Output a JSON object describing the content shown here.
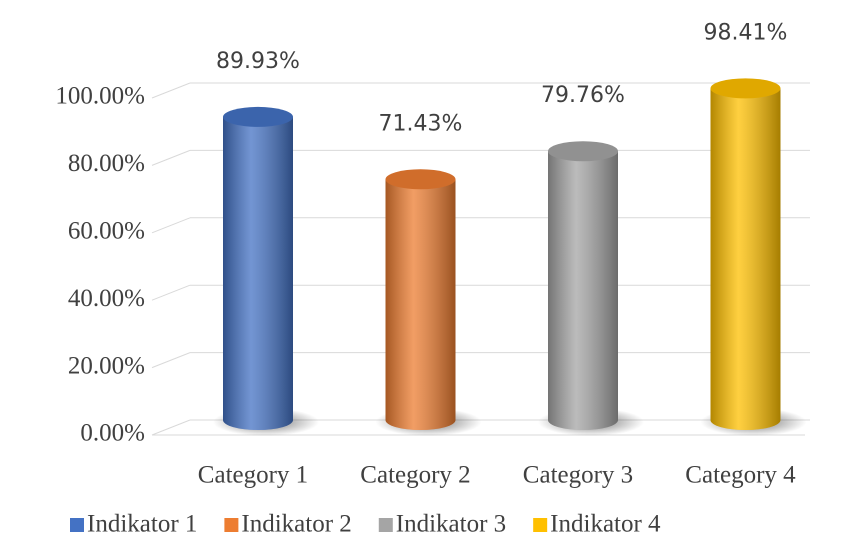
{
  "chart_data": {
    "type": "bar",
    "categories": [
      "Category 1",
      "Category 2",
      "Category 3",
      "Category 4"
    ],
    "series": [
      {
        "name": "Indikator 1",
        "color": "#4472c4",
        "values": [
          89.93,
          null,
          null,
          null
        ],
        "value_labels": [
          "89.93%",
          null,
          null,
          null
        ]
      },
      {
        "name": "Indikator 2",
        "color": "#ed7d31",
        "values": [
          null,
          71.43,
          null,
          null
        ],
        "value_labels": [
          null,
          "71.43%",
          null,
          null
        ]
      },
      {
        "name": "Indikator 3",
        "color": "#a5a5a5",
        "values": [
          null,
          null,
          79.76,
          null
        ],
        "value_labels": [
          null,
          null,
          "79.76%",
          null
        ]
      },
      {
        "name": "Indikator 4",
        "color": "#ffc000",
        "values": [
          null,
          null,
          null,
          98.41
        ],
        "value_labels": [
          null,
          null,
          null,
          "98.41%"
        ]
      }
    ],
    "ylim": [
      0,
      100
    ],
    "yticks": [
      {
        "value": 0,
        "label": "0.00%"
      },
      {
        "value": 20,
        "label": "20.00%"
      },
      {
        "value": 40,
        "label": "40.00%"
      },
      {
        "value": 60,
        "label": "60.00%"
      },
      {
        "value": 80,
        "label": "80.00%"
      },
      {
        "value": 100,
        "label": "100.00%"
      }
    ],
    "grid": true,
    "legend": "bottom"
  }
}
